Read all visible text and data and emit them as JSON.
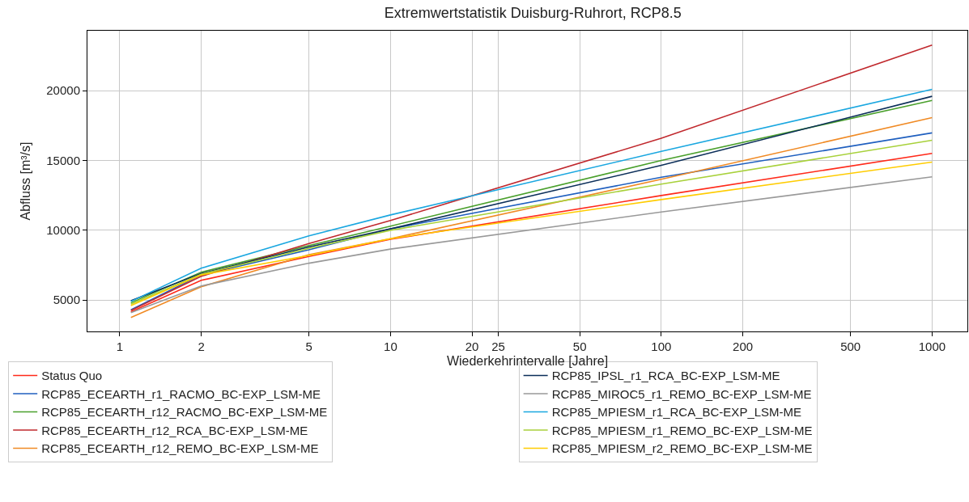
{
  "chart_data": {
    "type": "line",
    "title": "Extremwertstatistik Duisburg-Ruhrort, RCP8.5",
    "xlabel": "Wiederkehrintervalle [Jahre]",
    "ylabel": "Abfluss [m³/s]",
    "x": [
      1.1,
      2,
      5,
      10,
      100,
      1000
    ],
    "series": [
      {
        "name": "Status Quo",
        "color": "#ff2a1a",
        "values": [
          4150,
          6410,
          8120,
          9350,
          12490,
          15510
        ]
      },
      {
        "name": "RCP85_ECEARTH_r1_RACMO_BC-EXP_LSM-ME",
        "color": "#1f5fbf",
        "values": [
          4300,
          6800,
          8600,
          10100,
          13800,
          16980
        ]
      },
      {
        "name": "RCP85_ECEARTH_r12_RACMO_BC-EXP_LSM-ME",
        "color": "#4aa02c",
        "values": [
          4800,
          7000,
          8900,
          10300,
          15000,
          19300
        ]
      },
      {
        "name": "RCP85_ECEARTH_r12_RCA_BC-EXP_LSM-ME",
        "color": "#c0282d",
        "values": [
          4250,
          6700,
          9050,
          10700,
          16590,
          23270
        ]
      },
      {
        "name": "RCP85_ECEARTH_r12_REMO_BC-EXP_LSM-ME",
        "color": "#f08a24",
        "values": [
          3750,
          5950,
          8250,
          9400,
          13650,
          18070
        ]
      },
      {
        "name": "RCP85_IPSL_r1_RCA_BC-EXP_LSM-ME",
        "color": "#0b2e59",
        "values": [
          4950,
          6900,
          8800,
          10100,
          14650,
          19600
        ]
      },
      {
        "name": "RCP85_MIROC5_r1_REMO_BC-EXP_LSM-ME",
        "color": "#999999",
        "values": [
          4100,
          6010,
          7640,
          8650,
          11310,
          13830
        ]
      },
      {
        "name": "RCP85_MPIESM_r1_RCA_BC-EXP_LSM-ME",
        "color": "#1aa7e0",
        "values": [
          4900,
          7280,
          9600,
          11100,
          15650,
          20100
        ]
      },
      {
        "name": "RCP85_MPIESM_r1_REMO_BC-EXP_LSM-ME",
        "color": "#a8d13b",
        "values": [
          4700,
          6850,
          8700,
          10000,
          13310,
          16450
        ]
      },
      {
        "name": "RCP85_MPIESM_r2_REMO_BC-EXP_LSM-ME",
        "color": "#ffcc00",
        "values": [
          4600,
          6800,
          8200,
          9400,
          12200,
          14890
        ]
      }
    ],
    "log": "x",
    "xlim": [
      0.76,
      1350
    ],
    "xticks": [
      1,
      2,
      5,
      10,
      20,
      25,
      50,
      100,
      200,
      500,
      1000
    ],
    "ylim": [
      2750,
      24300
    ],
    "yticks": [
      5000,
      10000,
      15000,
      20000
    ],
    "grid": true,
    "legend": "bottom",
    "marker": "none",
    "line_style": "solid"
  }
}
